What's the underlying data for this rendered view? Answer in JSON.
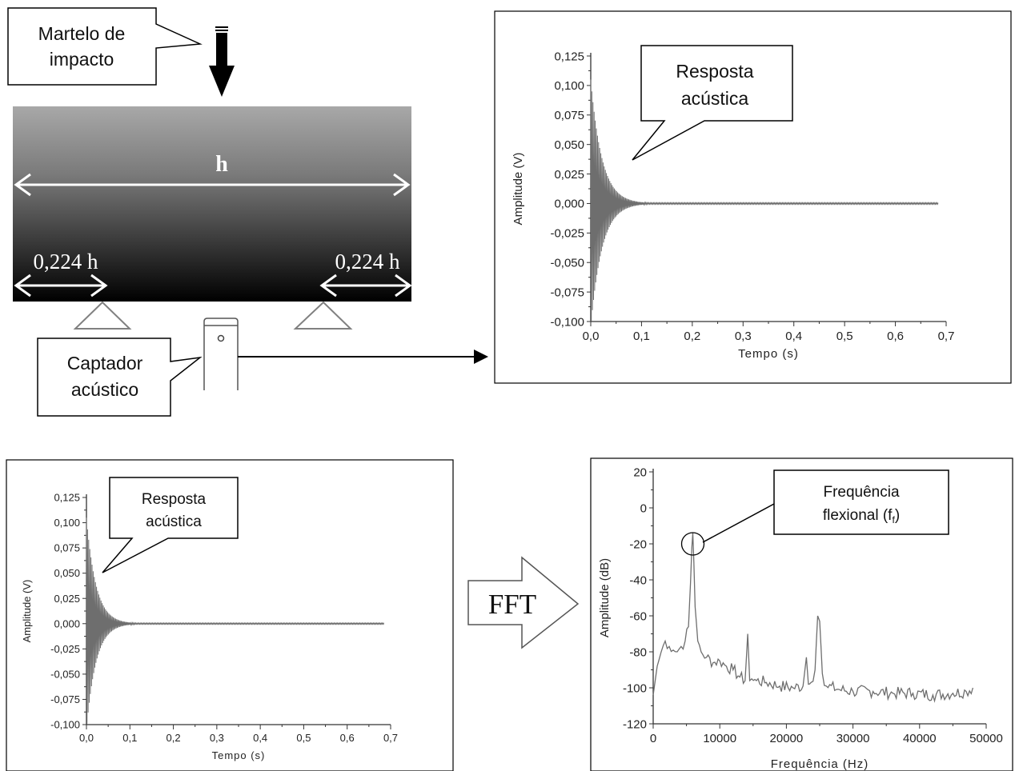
{
  "labels": {
    "hammer_line1": "Martelo de",
    "hammer_line2": "impacto",
    "beam_length": "h",
    "support_left": "0,224 h",
    "support_right": "0,224 h",
    "sensor_line1": "Captador",
    "sensor_line2": "acústico",
    "fft": "FFT",
    "resp_line1": "Resposta",
    "resp_line2": "acústica",
    "freq_line1": "Frequência",
    "freq_line2": "flexional (f",
    "freq_sub": "f",
    "freq_close": ")"
  },
  "colors": {
    "beam_top": "#a8a8a8",
    "beam_bottom": "#000000",
    "signal": "#6e6e6e",
    "support": "#808080"
  },
  "chart_data": [
    {
      "id": "time-top",
      "type": "line",
      "xlabel": "Tempo (s)",
      "ylabel": "Amplitude (V)",
      "xlim": [
        0,
        0.7
      ],
      "ylim": [
        -0.1,
        0.125
      ],
      "xticks": [
        "0,0",
        "0,1",
        "0,2",
        "0,3",
        "0,4",
        "0,5",
        "0,6",
        "0,7"
      ],
      "yticks": [
        "0,125",
        "0,100",
        "0,075",
        "0,050",
        "0,025",
        "0,000",
        "-0,025",
        "-0,050",
        "-0,075",
        "-0,100"
      ],
      "envelope": {
        "peak": 0.105,
        "decay_time_constant_s": 0.022,
        "signal_end_s": 0.685
      },
      "annotation": "Resposta acústica"
    },
    {
      "id": "time-bottom",
      "type": "line",
      "xlabel": "Tempo (s)",
      "ylabel": "Amplitude (V)",
      "xlim": [
        0,
        0.7
      ],
      "ylim": [
        -0.1,
        0.125
      ],
      "xticks": [
        "0,0",
        "0,1",
        "0,2",
        "0,3",
        "0,4",
        "0,5",
        "0,6",
        "0,7"
      ],
      "yticks": [
        "0,125",
        "0,100",
        "0,075",
        "0,050",
        "0,025",
        "0,000",
        "-0,025",
        "-0,050",
        "-0,075",
        "-0,100"
      ],
      "envelope": {
        "peak": 0.105,
        "decay_time_constant_s": 0.022,
        "signal_end_s": 0.685
      },
      "annotation": "Resposta acústica"
    },
    {
      "id": "spectrum",
      "type": "line",
      "xlabel": "Frequência (Hz)",
      "ylabel": "Amplitude (dB)",
      "xlim": [
        0,
        50000
      ],
      "ylim": [
        -120,
        20
      ],
      "xticks": [
        "0",
        "10000",
        "20000",
        "30000",
        "40000",
        "50000"
      ],
      "yticks": [
        "20",
        "0",
        "-20",
        "-40",
        "-60",
        "-80",
        "-100",
        "-120"
      ],
      "x": [
        0,
        600,
        1200,
        1800,
        2400,
        3000,
        3600,
        4200,
        4800,
        5300,
        5600,
        5800,
        5950,
        6100,
        6300,
        6700,
        7200,
        8000,
        9000,
        10000,
        11000,
        12000,
        13000,
        13800,
        14200,
        14500,
        14800,
        15500,
        17000,
        19000,
        21000,
        22500,
        23000,
        23300,
        23700,
        24300,
        24700,
        25000,
        25400,
        26000,
        28000,
        30000,
        33000,
        36000,
        39000,
        42000,
        45000,
        47000,
        48000
      ],
      "y": [
        -104,
        -88,
        -80,
        -74,
        -77,
        -79,
        -80,
        -77,
        -74,
        -66,
        -42,
        -22,
        -14,
        -30,
        -55,
        -74,
        -80,
        -83,
        -86,
        -85,
        -88,
        -90,
        -94,
        -96,
        -70,
        -96,
        -95,
        -96,
        -97,
        -99,
        -100,
        -99,
        -83,
        -98,
        -97,
        -90,
        -60,
        -63,
        -92,
        -99,
        -101,
        -102,
        -102,
        -103,
        -103,
        -104,
        -103,
        -102,
        -100
      ],
      "annotation": "Frequência flexional (ff)"
    }
  ]
}
